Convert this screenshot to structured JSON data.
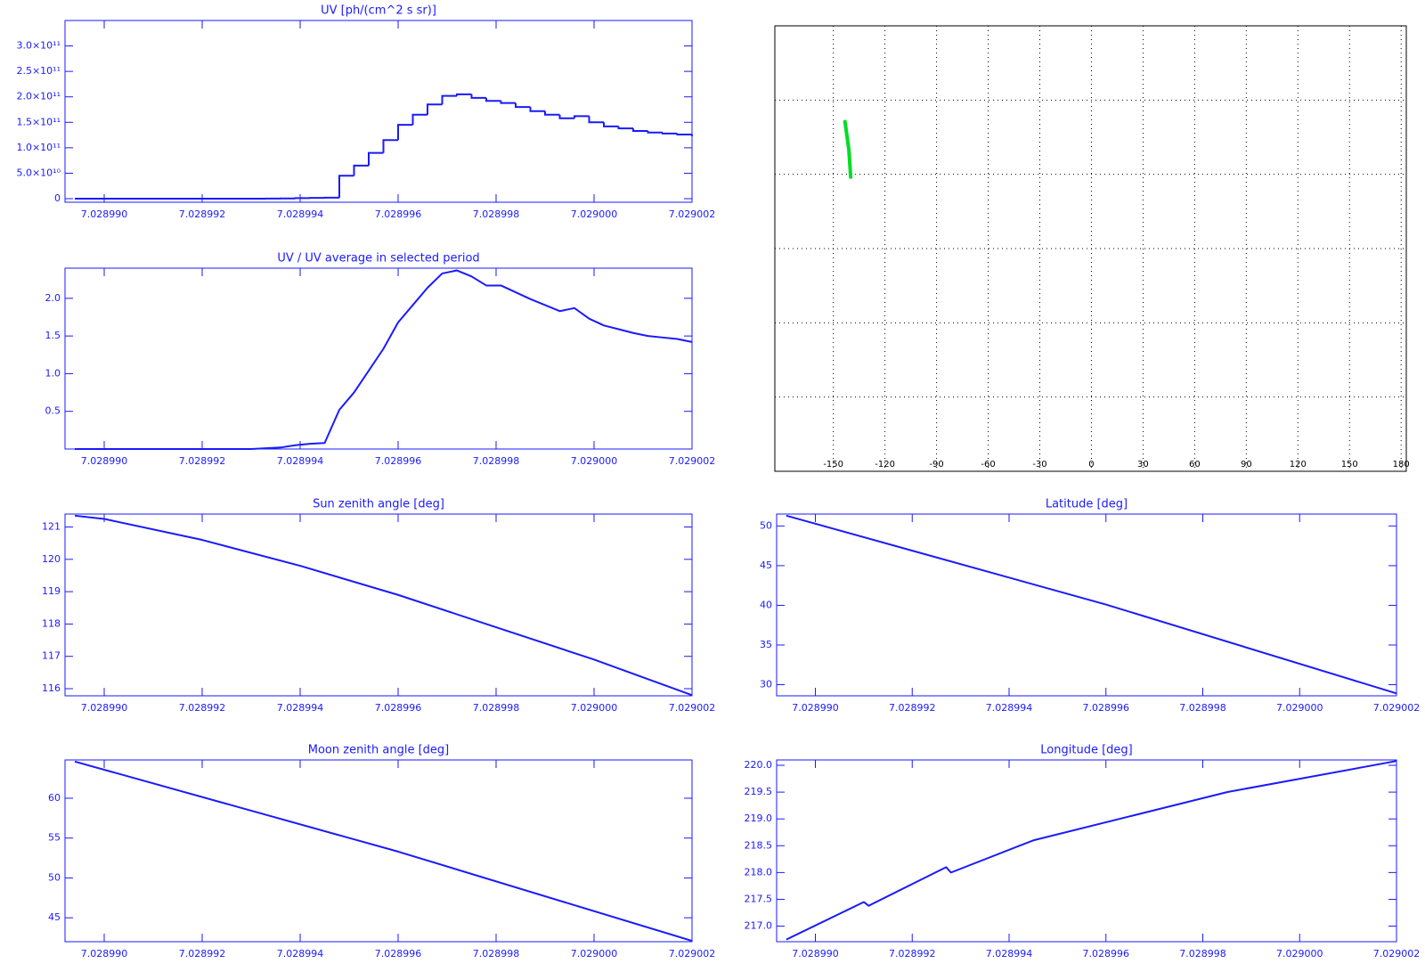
{
  "chart_data": [
    {
      "type": "line",
      "step": true,
      "title": "UV [ph/(cm^2 s sr)]",
      "color": "#1a1aff",
      "xlim": [
        7.0289892,
        7.029002
      ],
      "ylim": [
        -7000000000.0,
        350000000000.0
      ],
      "xticks": [
        {
          "value": 7.02899,
          "label": "7.028990"
        },
        7.028992,
        7.028994,
        7.028996,
        7.028998,
        {
          "value": 7.029,
          "label": "7.029000"
        },
        7.029002
      ],
      "yticks": [
        0,
        {
          "value": 50000000000.0,
          "label": "5.0×10¹⁰"
        },
        {
          "value": 100000000000.0,
          "label": "1.0×10¹¹"
        },
        {
          "value": 150000000000.0,
          "label": "1.5×10¹¹"
        },
        {
          "value": 200000000000.0,
          "label": "2.0×10¹¹"
        },
        {
          "value": 250000000000.0,
          "label": "2.5×10¹¹"
        },
        {
          "value": 300000000000.0,
          "label": "3.0×10¹¹"
        }
      ],
      "x": [
        7.0289894,
        7.0289897,
        7.02899,
        7.0289903,
        7.0289906,
        7.0289909,
        7.0289912,
        7.0289915,
        7.0289918,
        7.0289921,
        7.0289924,
        7.0289927,
        7.028993,
        7.0289933,
        7.0289936,
        7.0289939,
        7.0289942,
        7.0289945,
        7.0289948,
        7.0289951,
        7.0289954,
        7.0289957,
        7.028996,
        7.0289963,
        7.0289966,
        7.0289969,
        7.0289972,
        7.0289975,
        7.0289978,
        7.0289981,
        7.0289984,
        7.0289987,
        7.028999,
        7.0289993,
        7.0289996,
        7.0289999,
        7.0290002,
        7.0290005,
        7.0290008,
        7.0290011,
        7.0290014,
        7.0290017,
        7.029002
      ],
      "values": [
        0,
        0,
        0,
        0,
        0,
        0,
        0,
        0,
        0,
        0,
        0,
        0,
        0,
        200000000.0,
        500000000.0,
        1000000000.0,
        1500000000.0,
        2000000000.0,
        45000000000.0,
        65000000000.0,
        90000000000.0,
        115000000000.0,
        145000000000.0,
        165000000000.0,
        185000000000.0,
        202000000000.0,
        205000000000.0,
        198000000000.0,
        192000000000.0,
        188000000000.0,
        180000000000.0,
        172000000000.0,
        165000000000.0,
        158000000000.0,
        162000000000.0,
        150000000000.0,
        142000000000.0,
        138000000000.0,
        133000000000.0,
        130000000000.0,
        128000000000.0,
        126000000000.0,
        123000000000.0
      ]
    },
    {
      "type": "line",
      "title": "UV / UV average in selected period",
      "color": "#1a1aff",
      "xlim": [
        7.0289892,
        7.029002
      ],
      "ylim": [
        0,
        2.4
      ],
      "xticks": [
        {
          "value": 7.02899,
          "label": "7.028990"
        },
        7.028992,
        7.028994,
        7.028996,
        7.028998,
        {
          "value": 7.029,
          "label": "7.029000"
        },
        7.029002
      ],
      "yticks": [
        0.5,
        {
          "value": 1,
          "label": "1.0"
        },
        1.5,
        {
          "value": 2,
          "label": "2.0"
        }
      ],
      "x": [
        7.0289894,
        7.0289897,
        7.02899,
        7.0289903,
        7.0289906,
        7.0289909,
        7.0289912,
        7.0289915,
        7.0289918,
        7.0289921,
        7.0289924,
        7.0289927,
        7.028993,
        7.0289933,
        7.0289936,
        7.0289939,
        7.0289942,
        7.0289945,
        7.0289948,
        7.0289951,
        7.0289954,
        7.0289957,
        7.028996,
        7.0289963,
        7.0289966,
        7.0289969,
        7.0289972,
        7.0289975,
        7.0289978,
        7.0289981,
        7.0289984,
        7.0289987,
        7.028999,
        7.0289993,
        7.0289996,
        7.0289999,
        7.0290002,
        7.0290005,
        7.0290008,
        7.0290011,
        7.0290014,
        7.0290017,
        7.029002
      ],
      "values": [
        0,
        0,
        0,
        0,
        0,
        0,
        0,
        0,
        0,
        0,
        0,
        0,
        0,
        0.01,
        0.02,
        0.05,
        0.07,
        0.08,
        0.52,
        0.75,
        1.04,
        1.33,
        1.68,
        1.91,
        2.14,
        2.33,
        2.37,
        2.29,
        2.17,
        2.17,
        2.08,
        1.99,
        1.91,
        1.83,
        1.87,
        1.73,
        1.64,
        1.59,
        1.54,
        1.5,
        1.48,
        1.46,
        1.42
      ]
    },
    {
      "type": "map",
      "xlim": [
        -184,
        183
      ],
      "ylim": [
        -90,
        90
      ],
      "xticks": [
        -150,
        -120,
        -90,
        -60,
        -30,
        0,
        30,
        60,
        90,
        120,
        150,
        180
      ],
      "ygrid": [
        -60,
        -30,
        0,
        30,
        60
      ],
      "grid": true,
      "series": [
        {
          "color": "#00dd22",
          "x": [
            -143.25,
            -141,
            -139.92
          ],
          "values": [
            51.3,
            40.1,
            28.9
          ]
        }
      ]
    },
    {
      "type": "line",
      "title": "Sun zenith angle [deg]",
      "color": "#1a1aff",
      "xlim": [
        7.0289892,
        7.029002
      ],
      "ylim": [
        115.78,
        121.4
      ],
      "xticks": [
        {
          "value": 7.02899,
          "label": "7.028990"
        },
        7.028992,
        7.028994,
        7.028996,
        7.028998,
        {
          "value": 7.029,
          "label": "7.029000"
        },
        7.029002
      ],
      "yticks": [
        116,
        117,
        118,
        119,
        120,
        121
      ],
      "x": [
        7.0289894,
        7.02899,
        7.028992,
        7.028994,
        7.028996,
        7.028998,
        7.029,
        7.029002
      ],
      "values": [
        121.35,
        121.25,
        120.6,
        119.8,
        118.9,
        117.9,
        116.9,
        115.8
      ]
    },
    {
      "type": "line",
      "title": "Latitude [deg]",
      "color": "#1a1aff",
      "xlim": [
        7.0289892,
        7.029002
      ],
      "ylim": [
        28.6,
        51.5
      ],
      "xticks": [
        {
          "value": 7.02899,
          "label": "7.028990"
        },
        7.028992,
        7.028994,
        7.028996,
        7.028998,
        {
          "value": 7.029,
          "label": "7.029000"
        },
        7.029002
      ],
      "yticks": [
        30,
        35,
        40,
        45,
        50
      ],
      "x": [
        7.0289894,
        7.028996,
        7.029002
      ],
      "values": [
        51.3,
        40.1,
        28.9
      ]
    },
    {
      "type": "line",
      "title": "Moon zenith angle [deg]",
      "color": "#1a1aff",
      "xlim": [
        7.0289892,
        7.029002
      ],
      "ylim": [
        42,
        64.8
      ],
      "xticks": [
        {
          "value": 7.02899,
          "label": "7.028990"
        },
        7.028992,
        7.028994,
        7.028996,
        7.028998,
        {
          "value": 7.029,
          "label": "7.029000"
        },
        7.029002
      ],
      "yticks": [
        45,
        50,
        55,
        60
      ],
      "x": [
        7.0289894,
        7.028996,
        7.029002
      ],
      "values": [
        64.6,
        53.3,
        42.1
      ]
    },
    {
      "type": "line",
      "title": "Longitude [deg]",
      "color": "#1a1aff",
      "xlim": [
        7.0289892,
        7.029002
      ],
      "ylim": [
        216.71,
        220.1
      ],
      "xticks": [
        {
          "value": 7.02899,
          "label": "7.028990"
        },
        7.028992,
        7.028994,
        7.028996,
        7.028998,
        {
          "value": 7.029,
          "label": "7.029000"
        },
        7.029002
      ],
      "yticks": [
        {
          "value": 217,
          "label": "217.0"
        },
        217.5,
        {
          "value": 218,
          "label": "218.0"
        },
        218.5,
        {
          "value": 219,
          "label": "219.0"
        },
        219.5,
        {
          "value": 220,
          "label": "220.0"
        }
      ],
      "x": [
        7.0289894,
        7.028991,
        7.0289911,
        7.0289927,
        7.0289928,
        7.0289945,
        7.0289965,
        7.0289985,
        7.029002
      ],
      "values": [
        216.75,
        217.45,
        217.38,
        218.1,
        218.0,
        218.6,
        219.05,
        219.5,
        220.08
      ]
    }
  ]
}
